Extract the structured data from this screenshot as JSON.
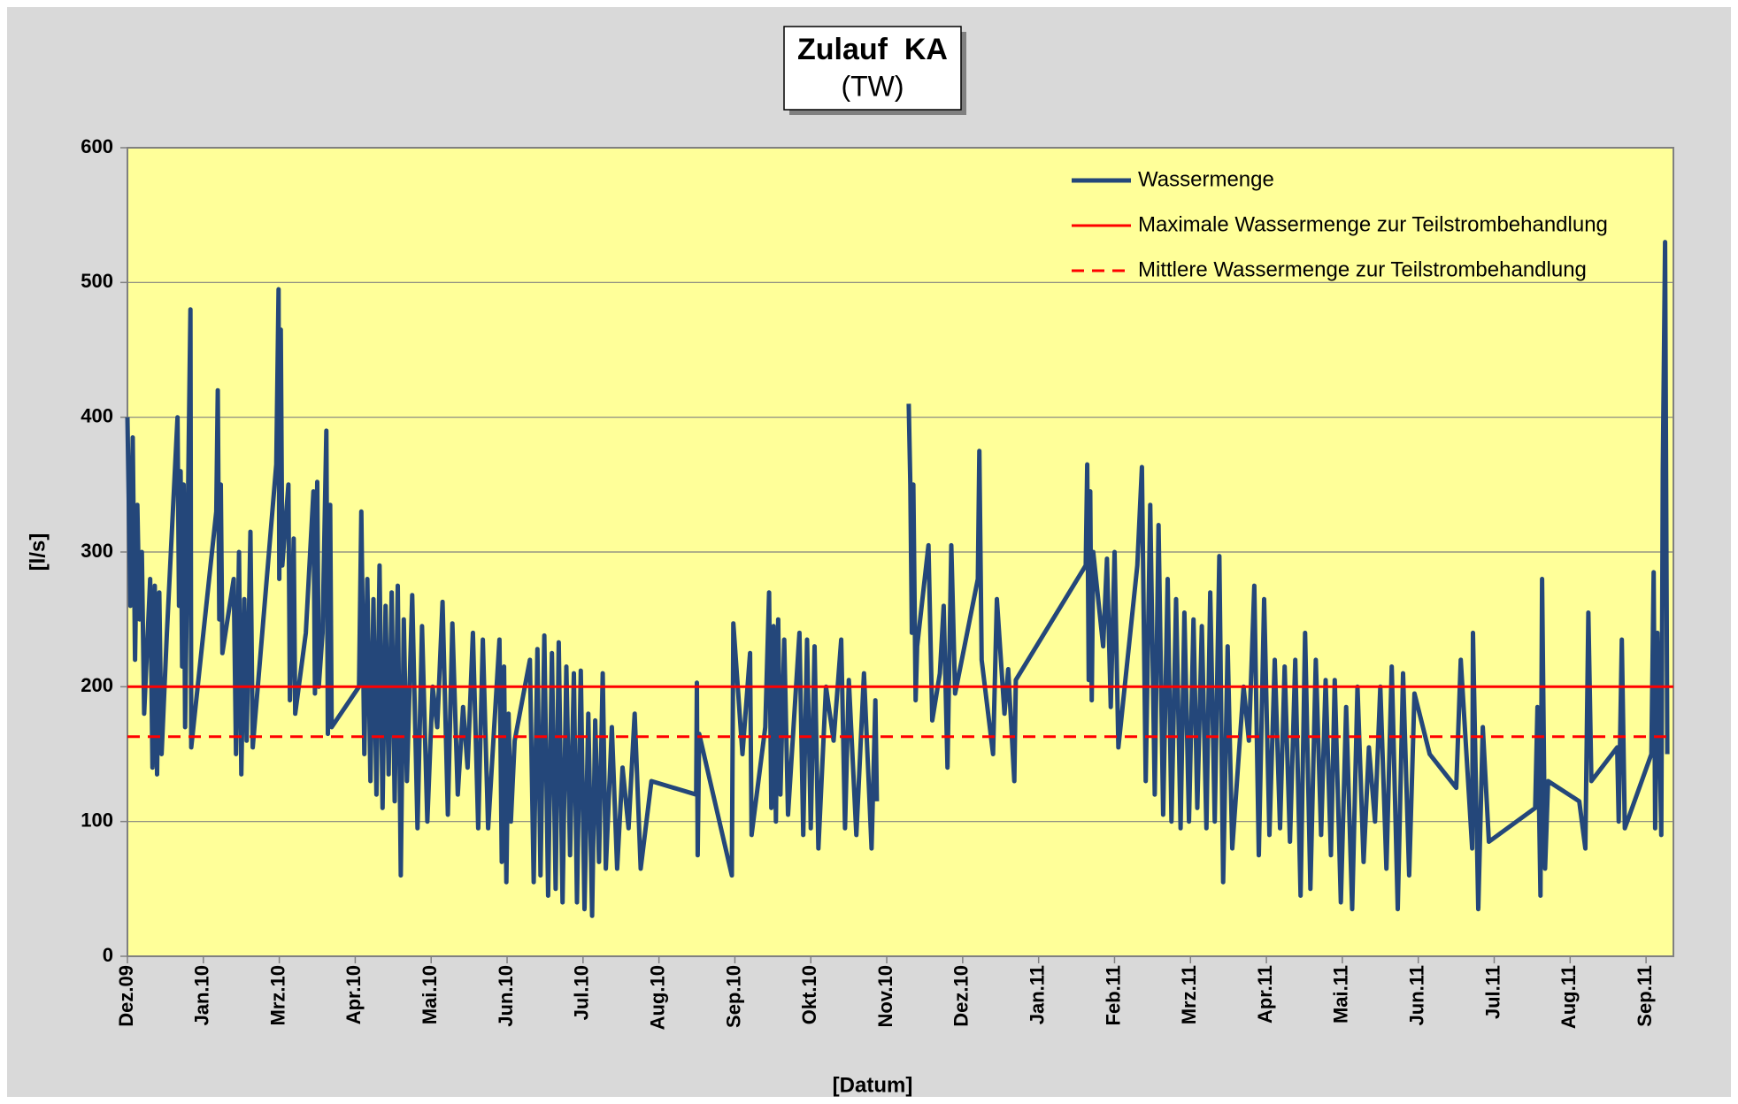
{
  "chart_data": {
    "type": "line",
    "title": "Zulauf  KA",
    "subtitle": "(TW)",
    "xlabel": "[Datum]",
    "ylabel": "[l/s]",
    "xlim": [
      0,
      20.36
    ],
    "xticks": [
      {
        "value": 0,
        "label": "Dez.09"
      },
      {
        "value": 1,
        "label": "Jan.10"
      },
      {
        "value": 2,
        "label": "Mrz.10"
      },
      {
        "value": 3,
        "label": "Apr.10"
      },
      {
        "value": 4,
        "label": "Mai.10"
      },
      {
        "value": 5,
        "label": "Jun.10"
      },
      {
        "value": 6,
        "label": "Jul.10"
      },
      {
        "value": 7,
        "label": "Aug.10"
      },
      {
        "value": 8,
        "label": "Sep.10"
      },
      {
        "value": 9,
        "label": "Okt.10"
      },
      {
        "value": 10,
        "label": "Nov.10"
      },
      {
        "value": 11,
        "label": "Dez.10"
      },
      {
        "value": 12,
        "label": "Jan.11"
      },
      {
        "value": 13,
        "label": "Feb.11"
      },
      {
        "value": 14,
        "label": "Mrz.11"
      },
      {
        "value": 15,
        "label": "Apr.11"
      },
      {
        "value": 16,
        "label": "Mai.11"
      },
      {
        "value": 17,
        "label": "Jun.11"
      },
      {
        "value": 18,
        "label": "Jul.11"
      },
      {
        "value": 19,
        "label": "Aug.11"
      },
      {
        "value": 20,
        "label": "Sep.11"
      }
    ],
    "ylim": [
      0,
      600
    ],
    "yticks": [
      0,
      100,
      200,
      300,
      400,
      500,
      600
    ],
    "grid": true,
    "legend": "top-right",
    "series": [
      {
        "name": "Wassermenge",
        "color": "#24477a",
        "width": 5,
        "x": [
          0.0,
          0.04,
          0.07,
          0.1,
          0.13,
          0.16,
          0.19,
          0.22,
          0.3,
          0.33,
          0.36,
          0.39,
          0.42,
          0.45,
          0.52,
          0.66,
          0.68,
          0.7,
          0.72,
          0.74,
          0.76,
          0.83,
          0.84,
          1.17,
          1.19,
          1.21,
          1.23,
          1.25,
          1.4,
          1.43,
          1.47,
          1.5,
          1.54,
          1.57,
          1.62,
          1.65,
          1.96,
          1.99,
          2.0,
          2.02,
          2.04,
          2.12,
          2.14,
          2.19,
          2.21,
          2.35,
          2.45,
          2.47,
          2.5,
          2.52,
          2.57,
          2.62,
          2.64,
          2.67,
          2.69,
          3.05,
          3.08,
          3.12,
          3.16,
          3.2,
          3.24,
          3.28,
          3.32,
          3.36,
          3.4,
          3.44,
          3.48,
          3.52,
          3.56,
          3.6,
          3.64,
          3.68,
          3.75,
          3.82,
          3.88,
          3.95,
          4.02,
          4.08,
          4.15,
          4.22,
          4.28,
          4.35,
          4.42,
          4.48,
          4.55,
          4.62,
          4.68,
          4.75,
          4.9,
          4.93,
          4.96,
          4.99,
          5.02,
          5.05,
          5.1,
          5.3,
          5.35,
          5.4,
          5.44,
          5.49,
          5.54,
          5.59,
          5.64,
          5.68,
          5.73,
          5.78,
          5.83,
          5.88,
          5.92,
          5.97,
          6.02,
          6.07,
          6.12,
          6.16,
          6.21,
          6.26,
          6.3,
          6.38,
          6.45,
          6.52,
          6.6,
          6.68,
          6.76,
          6.9,
          7.49,
          7.5,
          7.51,
          7.53,
          7.96,
          7.98,
          8.1,
          8.2,
          8.22,
          8.4,
          8.45,
          8.48,
          8.51,
          8.54,
          8.57,
          8.6,
          8.65,
          8.7,
          8.85,
          8.9,
          8.95,
          9.0,
          9.05,
          9.1,
          9.2,
          9.3,
          9.4,
          9.45,
          9.5,
          9.6,
          9.7,
          9.8,
          9.85,
          9.87,
          10.0,
          10.29,
          10.31,
          10.33,
          10.35,
          10.38,
          10.4,
          10.55,
          10.6,
          10.7,
          10.75,
          10.8,
          10.85,
          10.9,
          11.2,
          11.22,
          11.25,
          11.4,
          11.45,
          11.55,
          11.6,
          11.68,
          11.7,
          12.62,
          12.64,
          12.66,
          12.68,
          12.7,
          12.72,
          12.85,
          12.9,
          12.95,
          13.0,
          13.05,
          13.3,
          13.36,
          13.41,
          13.47,
          13.53,
          13.58,
          13.64,
          13.7,
          13.75,
          13.81,
          13.87,
          13.92,
          13.98,
          14.04,
          14.09,
          14.15,
          14.21,
          14.26,
          14.32,
          14.38,
          14.43,
          14.49,
          14.55,
          14.7,
          14.77,
          14.84,
          14.9,
          14.97,
          15.04,
          15.11,
          15.18,
          15.24,
          15.31,
          15.38,
          15.45,
          15.51,
          15.58,
          15.65,
          15.72,
          15.78,
          15.85,
          15.9,
          15.98,
          16.05,
          16.13,
          16.2,
          16.28,
          16.35,
          16.43,
          16.5,
          16.58,
          16.65,
          16.73,
          16.8,
          16.88,
          16.95,
          17.15,
          17.5,
          17.56,
          17.71,
          17.72,
          17.79,
          17.85,
          17.93,
          18.54,
          18.57,
          18.61,
          18.63,
          18.67,
          18.71,
          19.12,
          19.2,
          19.24,
          19.28,
          19.62,
          19.64,
          19.68,
          19.72,
          20.07,
          20.1,
          20.12,
          20.15,
          20.2,
          20.22,
          20.25,
          20.28
        ],
        "values": [
          400,
          260,
          385,
          220,
          335,
          250,
          300,
          180,
          280,
          140,
          275,
          135,
          270,
          150,
          240,
          400,
          260,
          360,
          215,
          350,
          170,
          480,
          155,
          330,
          420,
          250,
          350,
          225,
          280,
          150,
          300,
          135,
          265,
          160,
          315,
          155,
          365,
          495,
          280,
          465,
          290,
          350,
          190,
          310,
          180,
          240,
          345,
          195,
          352,
          200,
          240,
          390,
          165,
          335,
          170,
          200,
          330,
          150,
          280,
          130,
          265,
          120,
          290,
          110,
          260,
          135,
          270,
          115,
          275,
          60,
          250,
          130,
          268,
          95,
          245,
          100,
          200,
          170,
          263,
          105,
          247,
          120,
          185,
          140,
          240,
          95,
          235,
          95,
          235,
          70,
          215,
          55,
          180,
          100,
          160,
          220,
          55,
          228,
          60,
          238,
          45,
          225,
          50,
          233,
          40,
          215,
          75,
          210,
          40,
          212,
          35,
          180,
          30,
          175,
          70,
          210,
          65,
          170,
          65,
          140,
          95,
          180,
          65,
          130,
          120,
          203,
          75,
          165,
          60,
          247,
          150,
          225,
          90,
          170,
          270,
          110,
          245,
          100,
          250,
          120,
          235,
          105,
          240,
          90,
          235,
          95,
          230,
          80,
          200,
          160,
          235,
          95,
          205,
          90,
          210,
          80,
          190,
          115,
          null,
          410,
          350,
          240,
          350,
          190,
          230,
          305,
          175,
          210,
          260,
          140,
          305,
          195,
          280,
          375,
          220,
          150,
          265,
          180,
          213,
          130,
          205,
          290,
          365,
          205,
          345,
          190,
          300,
          230,
          295,
          185,
          300,
          155,
          290,
          363,
          130,
          335,
          120,
          320,
          105,
          280,
          100,
          265,
          95,
          255,
          100,
          250,
          110,
          245,
          95,
          270,
          100,
          297,
          55,
          230,
          80,
          200,
          160,
          275,
          75,
          265,
          90,
          220,
          95,
          215,
          85,
          220,
          45,
          240,
          50,
          220,
          90,
          205,
          75,
          205,
          40,
          185,
          35,
          200,
          70,
          155,
          100,
          200,
          65,
          215,
          35,
          210,
          60,
          195,
          150,
          125,
          220,
          80,
          240,
          35,
          170,
          85,
          110,
          185,
          45,
          280,
          65,
          130,
          115,
          80,
          255,
          130,
          155,
          100,
          235,
          95,
          150,
          285,
          95,
          240,
          90,
          360,
          530,
          150
        ]
      },
      {
        "name": "Maximale Wassermenge zur Teilstrombehandlung",
        "color": "#ff0000",
        "width": 3,
        "x": [
          0,
          20.36
        ],
        "values": [
          200,
          200
        ]
      },
      {
        "name": "Mittlere Wassermenge zur Teilstrombehandlung",
        "color": "#ff0000",
        "width": 3,
        "dashed": true,
        "x": [
          0,
          20.36
        ],
        "values": [
          163,
          163
        ]
      }
    ]
  }
}
